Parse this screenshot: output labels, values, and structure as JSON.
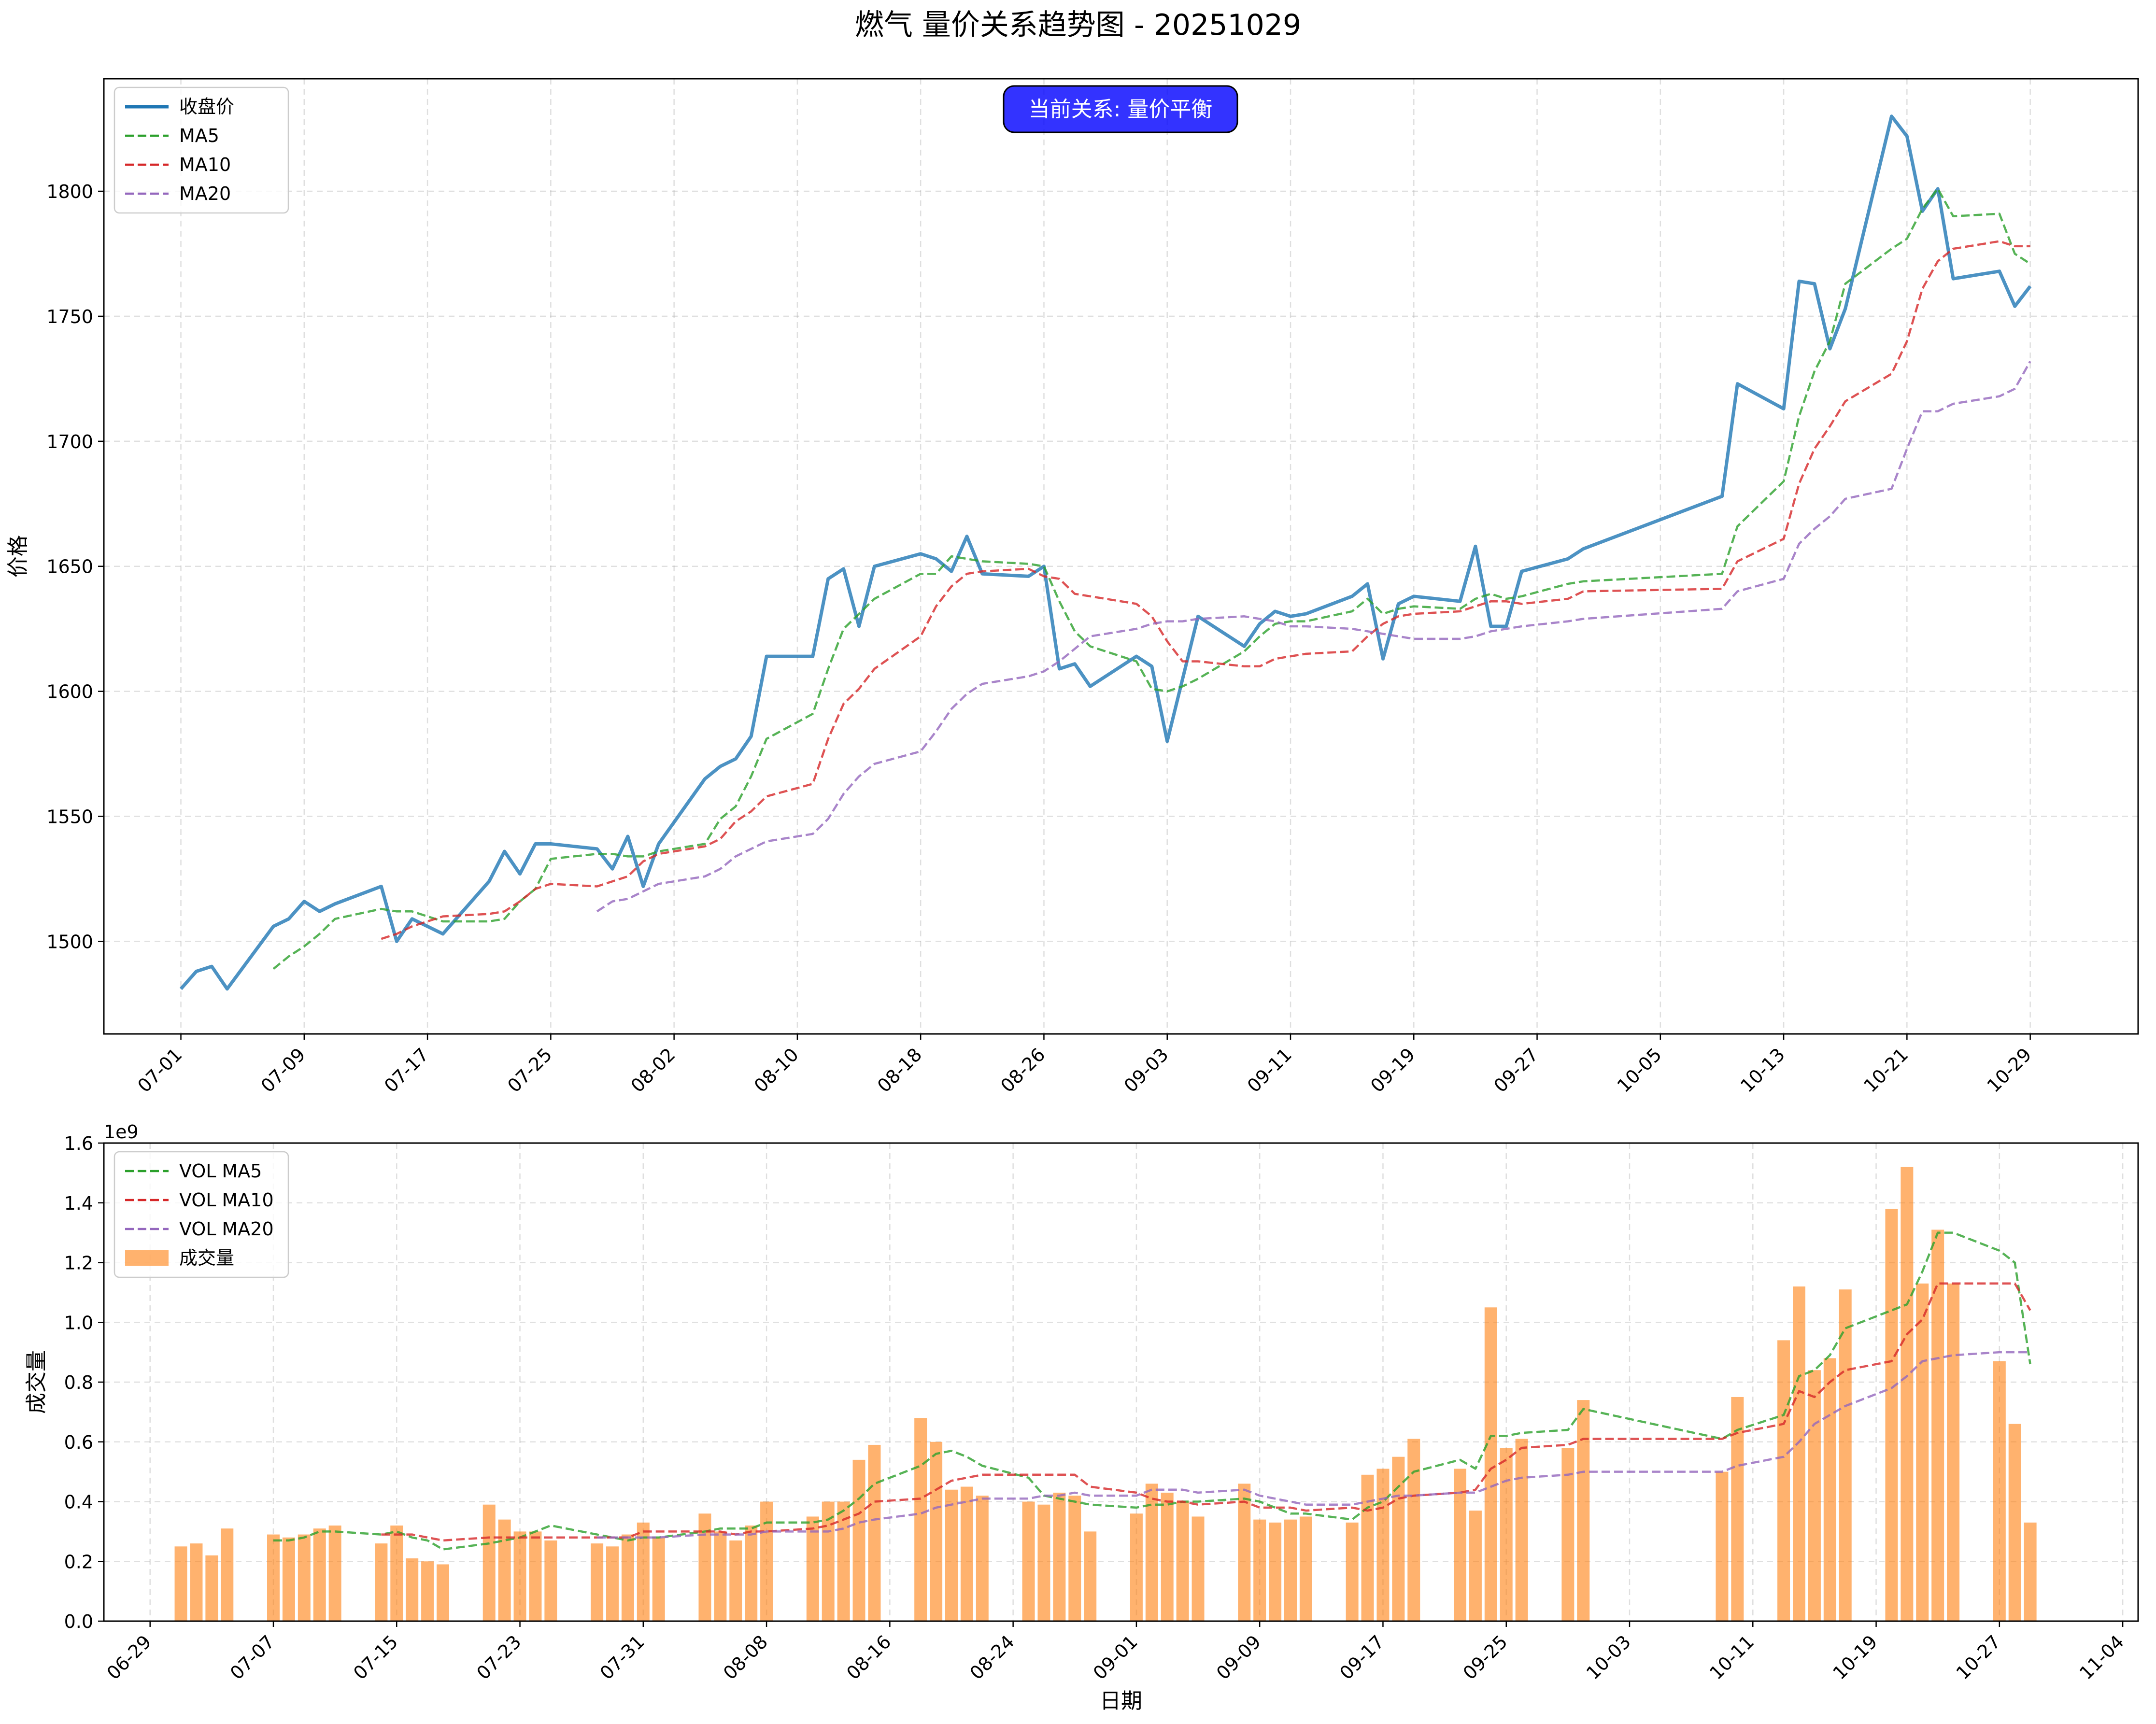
{
  "title": "燃气 量价关系趋势图 - 20251029",
  "status_badge": "当前关系: 量价平衡",
  "colors": {
    "close": "#1f77b4",
    "ma5": "#2ca02c",
    "ma10": "#d62728",
    "ma20": "#9467bd",
    "volume": "#ff7f0e",
    "badge": "#0000ff"
  },
  "chart_data": [
    {
      "type": "line",
      "panel": "price",
      "ylabel": "价格",
      "xlabel": "",
      "ylim": [
        1463,
        1845
      ],
      "yticks": [
        1500,
        1550,
        1600,
        1650,
        1700,
        1750,
        1800
      ],
      "xticks": [
        "2025-07-01",
        "2025-07-09",
        "2025-07-17",
        "2025-07-25",
        "2025-08-02",
        "2025-08-10",
        "2025-08-18",
        "2025-08-26",
        "2025-09-03",
        "2025-09-11",
        "2025-09-19",
        "2025-09-27",
        "2025-10-05",
        "2025-10-13",
        "2025-10-21",
        "2025-10-29"
      ],
      "xtick_labels": [
        "07-01",
        "07-09",
        "07-17",
        "07-25",
        "08-02",
        "08-10",
        "08-18",
        "08-26",
        "09-03",
        "09-11",
        "09-19",
        "09-27",
        "10-05",
        "10-13",
        "10-21",
        "10-29"
      ],
      "legend_position": "upper left",
      "grid": true,
      "dates": [
        "2025-07-01",
        "2025-07-02",
        "2025-07-03",
        "2025-07-04",
        "2025-07-07",
        "2025-07-08",
        "2025-07-09",
        "2025-07-10",
        "2025-07-11",
        "2025-07-14",
        "2025-07-15",
        "2025-07-16",
        "2025-07-17",
        "2025-07-18",
        "2025-07-21",
        "2025-07-22",
        "2025-07-23",
        "2025-07-24",
        "2025-07-25",
        "2025-07-28",
        "2025-07-29",
        "2025-07-30",
        "2025-07-31",
        "2025-08-01",
        "2025-08-04",
        "2025-08-05",
        "2025-08-06",
        "2025-08-07",
        "2025-08-08",
        "2025-08-11",
        "2025-08-12",
        "2025-08-13",
        "2025-08-14",
        "2025-08-15",
        "2025-08-18",
        "2025-08-19",
        "2025-08-20",
        "2025-08-21",
        "2025-08-22",
        "2025-08-25",
        "2025-08-26",
        "2025-08-27",
        "2025-08-28",
        "2025-08-29",
        "2025-09-01",
        "2025-09-02",
        "2025-09-03",
        "2025-09-04",
        "2025-09-05",
        "2025-09-08",
        "2025-09-09",
        "2025-09-10",
        "2025-09-11",
        "2025-09-12",
        "2025-09-15",
        "2025-09-16",
        "2025-09-17",
        "2025-09-18",
        "2025-09-19",
        "2025-09-22",
        "2025-09-23",
        "2025-09-24",
        "2025-09-25",
        "2025-09-26",
        "2025-09-29",
        "2025-09-30",
        "2025-10-09",
        "2025-10-10",
        "2025-10-13",
        "2025-10-14",
        "2025-10-15",
        "2025-10-16",
        "2025-10-17",
        "2025-10-20",
        "2025-10-21",
        "2025-10-22",
        "2025-10-23",
        "2025-10-24",
        "2025-10-27",
        "2025-10-28",
        "2025-10-29"
      ],
      "series": [
        {
          "name": "收盘价",
          "style": "solid",
          "values": [
            1481,
            1488,
            1490,
            1481,
            1506,
            1509,
            1516,
            1512,
            1515,
            1522,
            1500,
            1509,
            1506,
            1503,
            1524,
            1536,
            1527,
            1539,
            1539,
            1537,
            1529,
            1542,
            1522,
            1539,
            1565,
            1570,
            1573,
            1582,
            1614,
            1614,
            1645,
            1649,
            1626,
            1650,
            1655,
            1653,
            1648,
            1662,
            1647,
            1646,
            1650,
            1609,
            1611,
            1602,
            1614,
            1610,
            1580,
            1605,
            1630,
            1618,
            1627,
            1632,
            1630,
            1631,
            1638,
            1643,
            1613,
            1635,
            1638,
            1636,
            1658,
            1626,
            1626,
            1648,
            1653,
            1657,
            1678,
            1723,
            1713,
            1764,
            1763,
            1737,
            1753,
            1830,
            1822,
            1792,
            1801,
            1765,
            1768,
            1754,
            1762
          ]
        },
        {
          "name": "MA5",
          "style": "dashed",
          "values": [
            null,
            null,
            null,
            null,
            1489,
            1494,
            1498,
            1503,
            1509,
            1513,
            1512,
            1512,
            1510,
            1508,
            1508,
            1509,
            1516,
            1521,
            1533,
            1535,
            1535,
            1534,
            1534,
            1536,
            1539,
            1549,
            1554,
            1566,
            1581,
            1591,
            1609,
            1625,
            1631,
            1637,
            1647,
            1647,
            1654,
            1653,
            1652,
            1651,
            1650,
            1636,
            1624,
            1618,
            1612,
            1601,
            1600,
            1602,
            1605,
            1616,
            1622,
            1627,
            1628,
            1628,
            1632,
            1637,
            1631,
            1633,
            1634,
            1633,
            1637,
            1639,
            1637,
            1638,
            1643,
            1644,
            1647,
            1666,
            1684,
            1710,
            1728,
            1740,
            1763,
            1777,
            1781,
            1793,
            1801,
            1790,
            1791,
            1775,
            1771
          ]
        },
        {
          "name": "MA10",
          "style": "dashed",
          "values": [
            null,
            null,
            null,
            null,
            null,
            null,
            null,
            null,
            null,
            1501,
            1503,
            1506,
            1508,
            1510,
            1511,
            1512,
            1516,
            1521,
            1523,
            1522,
            1524,
            1526,
            1532,
            1535,
            1538,
            1541,
            1548,
            1552,
            1558,
            1563,
            1581,
            1595,
            1601,
            1609,
            1622,
            1634,
            1642,
            1647,
            1648,
            1649,
            1646,
            1645,
            1639,
            1638,
            1635,
            1630,
            1620,
            1612,
            1612,
            1610,
            1610,
            1613,
            1614,
            1615,
            1616,
            1622,
            1627,
            1630,
            1631,
            1632,
            1634,
            1636,
            1636,
            1635,
            1637,
            1640,
            1641,
            1652,
            1661,
            1683,
            1697,
            1706,
            1716,
            1727,
            1740,
            1761,
            1772,
            1777,
            1780,
            1778,
            1778
          ]
        },
        {
          "name": "MA20",
          "style": "dashed",
          "values": [
            null,
            null,
            null,
            null,
            null,
            null,
            null,
            null,
            null,
            null,
            null,
            null,
            null,
            null,
            null,
            null,
            null,
            null,
            null,
            1512,
            1516,
            1517,
            1520,
            1523,
            1526,
            1529,
            1534,
            1537,
            1540,
            1543,
            1549,
            1559,
            1566,
            1571,
            1576,
            1584,
            1593,
            1599,
            1603,
            1606,
            1608,
            1612,
            1617,
            1622,
            1625,
            1627,
            1628,
            1628,
            1629,
            1630,
            1629,
            1628,
            1626,
            1626,
            1625,
            1624,
            1623,
            1622,
            1621,
            1621,
            1622,
            1624,
            1625,
            1626,
            1628,
            1629,
            1633,
            1640,
            1645,
            1659,
            1665,
            1670,
            1677,
            1681,
            1697,
            1712,
            1712,
            1715,
            1718,
            1721,
            1732
          ]
        }
      ]
    },
    {
      "type": "bar",
      "panel": "volume",
      "ylabel": "成交量",
      "xlabel": "日期",
      "scale_label": "1e9",
      "ylim": [
        0,
        1.6
      ],
      "yticks": [
        0.0,
        0.2,
        0.4,
        0.6,
        0.8,
        1.0,
        1.2,
        1.4,
        1.6
      ],
      "ytick_labels": [
        "0.0",
        "0.2",
        "0.4",
        "0.6",
        "0.8",
        "1.0",
        "1.2",
        "1.4",
        "1.6"
      ],
      "xticks": [
        "2025-06-29",
        "2025-07-07",
        "2025-07-15",
        "2025-07-23",
        "2025-07-31",
        "2025-08-08",
        "2025-08-16",
        "2025-08-24",
        "2025-09-01",
        "2025-09-09",
        "2025-09-17",
        "2025-09-25",
        "2025-10-03",
        "2025-10-11",
        "2025-10-19",
        "2025-10-27",
        "2025-11-04"
      ],
      "xtick_labels": [
        "06-29",
        "07-07",
        "07-15",
        "07-23",
        "07-31",
        "08-08",
        "08-16",
        "08-24",
        "09-01",
        "09-09",
        "09-17",
        "09-25",
        "10-03",
        "10-11",
        "10-19",
        "10-27",
        "11-04"
      ],
      "legend_position": "upper left",
      "grid": true,
      "dates": [
        "2025-07-01",
        "2025-07-02",
        "2025-07-03",
        "2025-07-04",
        "2025-07-07",
        "2025-07-08",
        "2025-07-09",
        "2025-07-10",
        "2025-07-11",
        "2025-07-14",
        "2025-07-15",
        "2025-07-16",
        "2025-07-17",
        "2025-07-18",
        "2025-07-21",
        "2025-07-22",
        "2025-07-23",
        "2025-07-24",
        "2025-07-25",
        "2025-07-28",
        "2025-07-29",
        "2025-07-30",
        "2025-07-31",
        "2025-08-01",
        "2025-08-04",
        "2025-08-05",
        "2025-08-06",
        "2025-08-07",
        "2025-08-08",
        "2025-08-11",
        "2025-08-12",
        "2025-08-13",
        "2025-08-14",
        "2025-08-15",
        "2025-08-18",
        "2025-08-19",
        "2025-08-20",
        "2025-08-21",
        "2025-08-22",
        "2025-08-25",
        "2025-08-26",
        "2025-08-27",
        "2025-08-28",
        "2025-08-29",
        "2025-09-01",
        "2025-09-02",
        "2025-09-03",
        "2025-09-04",
        "2025-09-05",
        "2025-09-08",
        "2025-09-09",
        "2025-09-10",
        "2025-09-11",
        "2025-09-12",
        "2025-09-15",
        "2025-09-16",
        "2025-09-17",
        "2025-09-18",
        "2025-09-19",
        "2025-09-22",
        "2025-09-23",
        "2025-09-24",
        "2025-09-25",
        "2025-09-26",
        "2025-09-29",
        "2025-09-30",
        "2025-10-09",
        "2025-10-10",
        "2025-10-13",
        "2025-10-14",
        "2025-10-15",
        "2025-10-16",
        "2025-10-17",
        "2025-10-20",
        "2025-10-21",
        "2025-10-22",
        "2025-10-23",
        "2025-10-24",
        "2025-10-27",
        "2025-10-28",
        "2025-10-29"
      ],
      "bars": {
        "name": "成交量",
        "values": [
          0.25,
          0.26,
          0.22,
          0.31,
          0.29,
          0.28,
          0.29,
          0.31,
          0.32,
          0.26,
          0.32,
          0.21,
          0.2,
          0.19,
          0.39,
          0.34,
          0.3,
          0.3,
          0.27,
          0.26,
          0.25,
          0.29,
          0.33,
          0.28,
          0.36,
          0.3,
          0.27,
          0.32,
          0.4,
          0.35,
          0.4,
          0.4,
          0.54,
          0.59,
          0.68,
          0.6,
          0.44,
          0.45,
          0.42,
          0.4,
          0.39,
          0.43,
          0.42,
          0.3,
          0.36,
          0.46,
          0.43,
          0.4,
          0.35,
          0.46,
          0.34,
          0.33,
          0.34,
          0.35,
          0.33,
          0.49,
          0.51,
          0.55,
          0.61,
          0.51,
          0.37,
          1.05,
          0.58,
          0.61,
          0.58,
          0.74,
          0.5,
          0.75,
          0.94,
          1.12,
          0.84,
          0.88,
          1.11,
          1.38,
          1.52,
          1.13,
          1.31,
          1.13,
          0.87,
          0.66,
          0.33
        ]
      },
      "series": [
        {
          "name": "VOL MA5",
          "style": "dashed",
          "values": [
            null,
            null,
            null,
            null,
            0.27,
            0.27,
            0.28,
            0.3,
            0.3,
            0.29,
            0.3,
            0.28,
            0.27,
            0.24,
            0.26,
            0.27,
            0.28,
            0.3,
            0.32,
            0.29,
            0.28,
            0.27,
            0.28,
            0.28,
            0.3,
            0.31,
            0.31,
            0.31,
            0.33,
            0.33,
            0.34,
            0.37,
            0.41,
            0.46,
            0.52,
            0.56,
            0.57,
            0.55,
            0.52,
            0.48,
            0.42,
            0.41,
            0.4,
            0.39,
            0.38,
            0.39,
            0.39,
            0.4,
            0.4,
            0.41,
            0.4,
            0.38,
            0.36,
            0.36,
            0.34,
            0.38,
            0.4,
            0.45,
            0.5,
            0.54,
            0.51,
            0.62,
            0.62,
            0.63,
            0.64,
            0.71,
            0.61,
            0.64,
            0.69,
            0.82,
            0.84,
            0.89,
            0.98,
            1.04,
            1.06,
            1.17,
            1.3,
            1.3,
            1.24,
            1.2,
            0.86
          ]
        },
        {
          "name": "VOL MA10",
          "style": "dashed",
          "values": [
            null,
            null,
            null,
            null,
            null,
            null,
            null,
            null,
            null,
            0.29,
            0.29,
            0.29,
            0.28,
            0.27,
            0.28,
            0.28,
            0.28,
            0.28,
            0.28,
            0.28,
            0.28,
            0.28,
            0.3,
            0.3,
            0.3,
            0.3,
            0.29,
            0.3,
            0.3,
            0.31,
            0.32,
            0.34,
            0.36,
            0.4,
            0.41,
            0.44,
            0.47,
            0.48,
            0.49,
            0.49,
            0.49,
            0.49,
            0.49,
            0.45,
            0.43,
            0.41,
            0.4,
            0.4,
            0.39,
            0.4,
            0.38,
            0.38,
            0.38,
            0.37,
            0.38,
            0.37,
            0.38,
            0.41,
            0.42,
            0.43,
            0.44,
            0.51,
            0.54,
            0.58,
            0.59,
            0.61,
            0.61,
            0.63,
            0.66,
            0.77,
            0.75,
            0.8,
            0.84,
            0.87,
            0.96,
            1.01,
            1.13,
            1.13,
            1.13,
            1.13,
            1.04
          ]
        },
        {
          "name": "VOL MA20",
          "style": "dashed",
          "values": [
            null,
            null,
            null,
            null,
            null,
            null,
            null,
            null,
            null,
            null,
            null,
            null,
            null,
            null,
            null,
            null,
            null,
            null,
            null,
            0.28,
            0.28,
            0.28,
            0.28,
            0.28,
            0.29,
            0.29,
            0.29,
            0.29,
            0.3,
            0.3,
            0.3,
            0.31,
            0.33,
            0.34,
            0.36,
            0.38,
            0.39,
            0.4,
            0.41,
            0.41,
            0.42,
            0.42,
            0.43,
            0.42,
            0.42,
            0.44,
            0.44,
            0.44,
            0.43,
            0.44,
            0.42,
            0.41,
            0.4,
            0.39,
            0.39,
            0.4,
            0.41,
            0.42,
            0.42,
            0.43,
            0.43,
            0.45,
            0.47,
            0.48,
            0.49,
            0.5,
            0.5,
            0.52,
            0.55,
            0.6,
            0.66,
            0.69,
            0.72,
            0.78,
            0.82,
            0.87,
            0.88,
            0.89,
            0.9,
            0.9,
            0.9
          ]
        }
      ]
    }
  ]
}
